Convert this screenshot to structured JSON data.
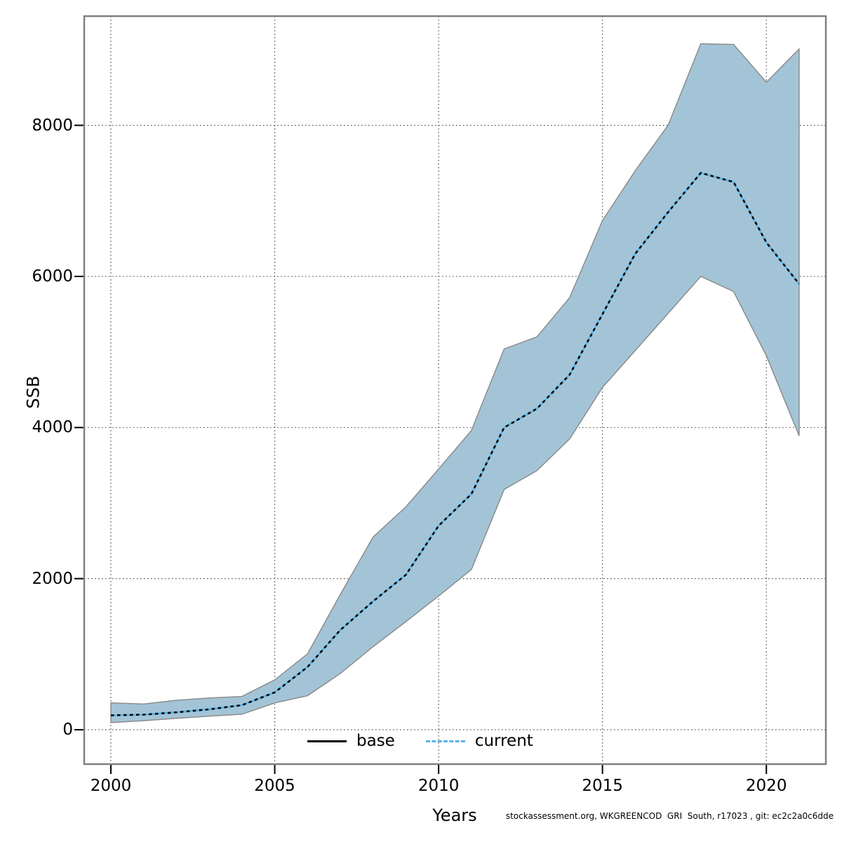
{
  "figure": {
    "y_axis_title": "SSB",
    "x_axis_title": "Years",
    "footer": "stockassessment.org, WKGREENCOD  GRI  South, r17023 , git: ec2c2a0c6dde",
    "legend": [
      {
        "label": "base",
        "line_style": "solid",
        "color": "#000000"
      },
      {
        "label": "current",
        "line_style": "dotted",
        "color": "#56b4e9"
      }
    ]
  },
  "colors": {
    "band_fill": "#a3c4d7",
    "band_edge": "#8c8c8c",
    "current_line_under": "#56b4e9",
    "current_line_dash": "#000000",
    "plot_border": "#808080",
    "gridline": "#555555",
    "tick": "#000000"
  },
  "chart_data": {
    "type": "line",
    "title": "",
    "xlabel": "Years",
    "ylabel": "SSB",
    "x_ticks": [
      2000,
      2005,
      2010,
      2015,
      2020
    ],
    "y_ticks": [
      0,
      2000,
      4000,
      6000,
      8000
    ],
    "xlim": [
      1999.2,
      2021.8
    ],
    "ylim": [
      -455,
      9445
    ],
    "grid": "dotted",
    "legend_position": "bottom-center-inside",
    "years": [
      2000,
      2001,
      2002,
      2003,
      2004,
      2005,
      2006,
      2007,
      2008,
      2009,
      2010,
      2011,
      2012,
      2013,
      2014,
      2015,
      2016,
      2017,
      2018,
      2019,
      2020,
      2021
    ],
    "series": [
      {
        "name": "base",
        "style": "solid-black",
        "note": "coincides with current line (hidden underneath)"
      },
      {
        "name": "current",
        "style": "dotted-blue",
        "values": [
          190,
          200,
          230,
          270,
          325,
          495,
          830,
          1320,
          1700,
          2050,
          2700,
          3120,
          4000,
          4250,
          4700,
          5500,
          6300,
          6850,
          7370,
          7250,
          6450,
          5900
        ]
      }
    ],
    "band": {
      "name": "confidence-band",
      "lower": [
        95,
        120,
        150,
        180,
        205,
        355,
        450,
        745,
        1100,
        1430,
        1770,
        2120,
        3180,
        3430,
        3850,
        4530,
        5020,
        5510,
        6000,
        5800,
        4950,
        3890
      ],
      "upper": [
        355,
        340,
        390,
        420,
        440,
        660,
        1005,
        1790,
        2550,
        2950,
        3450,
        3960,
        5040,
        5200,
        5720,
        6740,
        7400,
        8000,
        9080,
        9070,
        8570,
        9010
      ]
    }
  }
}
